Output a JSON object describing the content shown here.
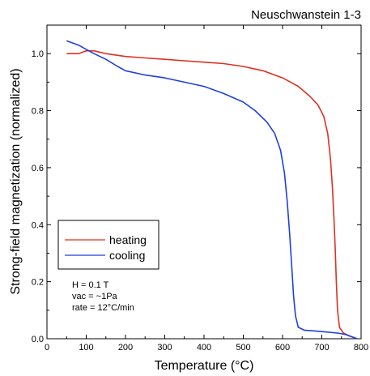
{
  "chart_data": {
    "type": "line",
    "title": "Neuschwanstein 1-3",
    "xlabel": "Temperature (°C)",
    "ylabel": "Strong-field magnetization (normalized)",
    "xlim": [
      0,
      800
    ],
    "ylim": [
      0,
      1.1
    ],
    "xticks": [
      "0",
      "100",
      "200",
      "300",
      "400",
      "500",
      "600",
      "700",
      "800"
    ],
    "yticks": [
      "0.0",
      "0.2",
      "0.4",
      "0.6",
      "0.8",
      "1.0"
    ],
    "grid": false,
    "legend_position": "bottom-left",
    "series": [
      {
        "name": "heating",
        "color": "#e0301e",
        "points": [
          [
            50,
            1.0
          ],
          [
            80,
            1.0
          ],
          [
            100,
            1.01
          ],
          [
            120,
            1.01
          ],
          [
            150,
            1.0
          ],
          [
            200,
            0.99
          ],
          [
            250,
            0.985
          ],
          [
            300,
            0.98
          ],
          [
            350,
            0.975
          ],
          [
            400,
            0.97
          ],
          [
            450,
            0.965
          ],
          [
            500,
            0.955
          ],
          [
            550,
            0.94
          ],
          [
            600,
            0.915
          ],
          [
            640,
            0.885
          ],
          [
            670,
            0.85
          ],
          [
            690,
            0.82
          ],
          [
            705,
            0.78
          ],
          [
            715,
            0.72
          ],
          [
            722,
            0.63
          ],
          [
            727,
            0.53
          ],
          [
            731,
            0.42
          ],
          [
            734,
            0.32
          ],
          [
            737,
            0.2
          ],
          [
            740,
            0.1
          ],
          [
            745,
            0.04
          ],
          [
            755,
            0.02
          ],
          [
            770,
            0.01
          ],
          [
            790,
            0.0
          ]
        ]
      },
      {
        "name": "cooling",
        "color": "#1f3fe0",
        "points": [
          [
            50,
            1.045
          ],
          [
            80,
            1.03
          ],
          [
            100,
            1.015
          ],
          [
            120,
            1.0
          ],
          [
            150,
            0.98
          ],
          [
            180,
            0.955
          ],
          [
            200,
            0.94
          ],
          [
            250,
            0.925
          ],
          [
            300,
            0.915
          ],
          [
            350,
            0.9
          ],
          [
            400,
            0.885
          ],
          [
            450,
            0.86
          ],
          [
            500,
            0.83
          ],
          [
            530,
            0.8
          ],
          [
            560,
            0.76
          ],
          [
            580,
            0.72
          ],
          [
            595,
            0.66
          ],
          [
            605,
            0.58
          ],
          [
            612,
            0.48
          ],
          [
            618,
            0.37
          ],
          [
            623,
            0.26
          ],
          [
            628,
            0.15
          ],
          [
            633,
            0.08
          ],
          [
            640,
            0.04
          ],
          [
            655,
            0.03
          ],
          [
            700,
            0.025
          ],
          [
            740,
            0.02
          ],
          [
            760,
            0.015
          ],
          [
            780,
            0.005
          ],
          [
            790,
            0.0
          ]
        ]
      }
    ],
    "annotation_lines": [
      "H = 0.1 T",
      "vac = ~1Pa",
      "rate = 12°C/min"
    ]
  }
}
